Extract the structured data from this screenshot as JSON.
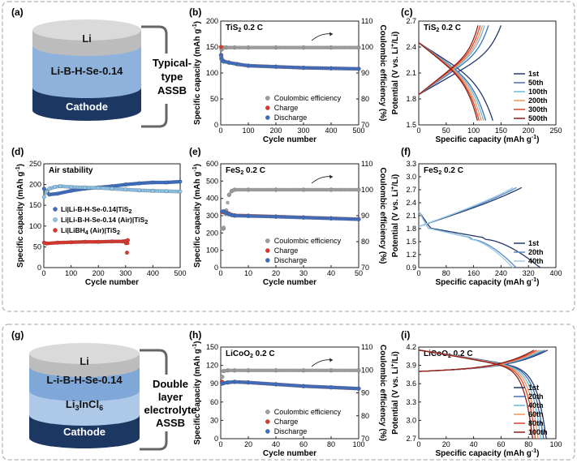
{
  "panel_labels": {
    "a": "(a)",
    "b": "(b)",
    "c": "(c)",
    "d": "(d)",
    "e": "(e)",
    "f": "(f)",
    "g": "(g)",
    "h": "(h)",
    "i": "(i)"
  },
  "panel_a": {
    "layers": [
      "Li",
      "Li-B-H-Se-0.14",
      "Cathode"
    ],
    "caption_lines": [
      "Typical-",
      "type",
      "ASSB"
    ]
  },
  "panel_g": {
    "layers": [
      "Li",
      "L-i-B-H-Se-0.14",
      "Li",
      "3",
      "InCl",
      "6",
      "Cathode"
    ],
    "caption_lines": [
      "Double",
      "layer",
      "electrolyte",
      "ASSB"
    ]
  },
  "colors": {
    "ce": "#9e9e9e",
    "charge": "#e0352b",
    "discharge": "#3b6fc4",
    "cyl_dark": "#1d3763",
    "cyl_light": "#8eb2dc",
    "cyl_mid": "#aec8e8",
    "cyl_top": "#cfcfcf"
  },
  "chart_data": [
    {
      "id": "b",
      "type": "scatter",
      "title": "TiS",
      "title_sub": "2",
      "rate": "0.2 C",
      "xlabel": "Cycle number",
      "ylabel": "Specific capacity (mAh g",
      "ylabel_sup": "-1",
      "ylabel_end": ")",
      "y2label": "Coulombic efficiency (%)",
      "xlim": [
        0,
        500
      ],
      "ylim": [
        0,
        200
      ],
      "y2lim": [
        70,
        110
      ],
      "xticks": [
        "0",
        "100",
        "200",
        "300",
        "400",
        "500"
      ],
      "yticks": [
        "0",
        "50",
        "100",
        "150",
        "200"
      ],
      "y2ticks": [
        "70",
        "80",
        "90",
        "100",
        "110"
      ],
      "legend": [
        "Coulombic efficiency",
        "Charge",
        "Discharge"
      ],
      "series": [
        {
          "name": "Coulombic efficiency",
          "axis": "right",
          "x": [
            1,
            3,
            5,
            10,
            20,
            50,
            100,
            200,
            300,
            400,
            500
          ],
          "y": [
            97,
            99,
            99.5,
            99.8,
            99.8,
            99.8,
            99.8,
            99.8,
            99.8,
            99.8,
            99.8
          ]
        },
        {
          "name": "Charge",
          "axis": "left",
          "x": [
            1,
            2,
            5,
            10,
            30,
            60,
            100,
            200,
            300,
            400,
            500
          ],
          "y": [
            150,
            134,
            125,
            123,
            120,
            117,
            114,
            112,
            110,
            109,
            108
          ]
        },
        {
          "name": "Discharge",
          "axis": "left",
          "x": [
            1,
            2,
            5,
            10,
            30,
            60,
            100,
            200,
            300,
            400,
            500
          ],
          "y": [
            134,
            128,
            124,
            122,
            120,
            117,
            114,
            112,
            110,
            109,
            108
          ]
        }
      ]
    },
    {
      "id": "c",
      "type": "line",
      "title": "TiS",
      "title_sub": "2",
      "rate": "0.2 C",
      "xlabel": "Specific capacity (mAh g",
      "xlabel_sup": "-1",
      "xlabel_end": ")",
      "ylabel": "Potential (V vs. Li",
      "ylabel_sup": "+",
      "ylabel_end": "/Li)",
      "xlim": [
        0,
        250
      ],
      "ylim": [
        1.5,
        2.7
      ],
      "xticks": [
        "0",
        "50",
        "100",
        "150",
        "200",
        "250"
      ],
      "yticks": [
        "1.5",
        "1.8",
        "2.1",
        "2.4",
        "2.7"
      ],
      "series": [
        {
          "name": "1st",
          "color": "#253a6b",
          "capacity": 135,
          "charge_cap": 150
        },
        {
          "name": "50th",
          "color": "#3f6fb3",
          "capacity": 122,
          "charge_cap": 127
        },
        {
          "name": "100th",
          "color": "#6bb9dc",
          "capacity": 118,
          "charge_cap": 120
        },
        {
          "name": "200th",
          "color": "#f0935a",
          "capacity": 114,
          "charge_cap": 116
        },
        {
          "name": "300th",
          "color": "#d9462e",
          "capacity": 110,
          "charge_cap": 112
        },
        {
          "name": "500th",
          "color": "#8c1f1a",
          "capacity": 107,
          "charge_cap": 108
        }
      ]
    },
    {
      "id": "d",
      "type": "scatter",
      "title": "Air stability",
      "xlabel": "Cycle number",
      "ylabel": "Specific capacity (mAh g",
      "ylabel_sup": "-1",
      "ylabel_end": ")",
      "xlim": [
        0,
        500
      ],
      "ylim": [
        0,
        250
      ],
      "xticks": [
        "0",
        "100",
        "200",
        "300",
        "400",
        "500"
      ],
      "yticks": [
        "0",
        "50",
        "100",
        "150",
        "200",
        "250"
      ],
      "legend_items": [
        {
          "text": "Li|Li-B-H-Se-0.14|TiS",
          "sub": "2",
          "color": "#3b6fc4"
        },
        {
          "text": "Li|Li-B-H-Se-0.14 (Air)|TiS",
          "sub": "2",
          "color": "#8ec6ea"
        },
        {
          "text": "Li|LiBH",
          "sub": "4",
          "text2": " (Air)|TiS",
          "sub2": "2",
          "color": "#e0352b"
        }
      ],
      "series": [
        {
          "name": "Li|Li-B-H-Se-0.14|TiS2",
          "x": [
            1,
            20,
            50,
            100,
            150,
            200,
            250,
            300,
            350,
            400,
            450,
            500
          ],
          "y": [
            190,
            176,
            178,
            185,
            190,
            193,
            196,
            200,
            203,
            205,
            205,
            207
          ]
        },
        {
          "name": "Li|Li-B-H-Se-0.14 (Air)|TiS2",
          "x": [
            1,
            10,
            20,
            40,
            60,
            100,
            150,
            200,
            250,
            300,
            350,
            400,
            450,
            500
          ],
          "y": [
            170,
            183,
            190,
            194,
            196,
            194,
            193,
            192,
            190,
            188,
            186,
            185,
            184,
            183
          ]
        },
        {
          "name": "Li|LiBH4 (Air)|TiS2",
          "x": [
            1,
            10,
            50,
            100,
            150,
            200,
            250,
            290,
            300,
            305,
            308
          ],
          "y": [
            60,
            58,
            60,
            61,
            62,
            62,
            63,
            63,
            64,
            36,
            66
          ]
        }
      ]
    },
    {
      "id": "e",
      "type": "scatter",
      "title": "FeS",
      "title_sub": "2",
      "rate": "0.2 C",
      "xlabel": "Cycle number",
      "ylabel": "Specific capacity (mAh g",
      "ylabel_sup": "-1",
      "ylabel_end": ")",
      "y2label": "Coulombic efficiency (%)",
      "xlim": [
        0,
        50
      ],
      "ylim": [
        0,
        600
      ],
      "y2lim": [
        70,
        110
      ],
      "xticks": [
        "0",
        "10",
        "20",
        "30",
        "40",
        "50"
      ],
      "yticks": [
        "0",
        "100",
        "200",
        "300",
        "400",
        "500",
        "600"
      ],
      "y2ticks": [
        "70",
        "80",
        "90",
        "100",
        "110"
      ],
      "legend": [
        "Coulombic efficiency",
        "Charge",
        "Discharge"
      ],
      "series": [
        {
          "name": "Coulombic efficiency",
          "axis": "right",
          "x": [
            1,
            2,
            3,
            4,
            5,
            10,
            20,
            30,
            40,
            50
          ],
          "y": [
            85,
            92,
            98,
            99.5,
            100,
            100,
            100,
            100,
            100,
            100
          ]
        },
        {
          "name": "Charge",
          "axis": "left",
          "x": [
            1,
            2,
            3,
            4,
            5,
            10,
            20,
            30,
            40,
            50
          ],
          "y": [
            320,
            318,
            312,
            305,
            302,
            300,
            295,
            290,
            285,
            280
          ]
        },
        {
          "name": "Discharge",
          "axis": "left",
          "x": [
            1,
            2,
            3,
            4,
            5,
            10,
            20,
            30,
            40,
            50
          ],
          "y": [
            325,
            315,
            308,
            303,
            300,
            298,
            294,
            289,
            284,
            279
          ]
        }
      ]
    },
    {
      "id": "f",
      "type": "line",
      "title": "FeS",
      "title_sub": "2",
      "rate": "0.2 C",
      "xlabel": "Specific capacity (mAh g",
      "xlabel_sup": "-1",
      "xlabel_end": ")",
      "ylabel": "Potential (V vs. Li",
      "ylabel_sup": "+",
      "ylabel_end": "/Li)",
      "xlim": [
        0,
        400
      ],
      "ylim": [
        0.9,
        3.3
      ],
      "xticks": [
        "0",
        "80",
        "160",
        "240",
        "320",
        "400"
      ],
      "yticks": [
        "0.9",
        "1.2",
        "1.5",
        "1.8",
        "2.1",
        "2.4",
        "2.7",
        "3.0",
        "3.3"
      ],
      "series": [
        {
          "name": "1st",
          "color": "#253a6b",
          "capacity": 355,
          "charge_cap": 300
        },
        {
          "name": "20th",
          "color": "#5b89c4",
          "capacity": 285,
          "charge_cap": 285
        },
        {
          "name": "40th",
          "color": "#9ccbe8",
          "capacity": 275,
          "charge_cap": 275
        }
      ]
    },
    {
      "id": "h",
      "type": "scatter",
      "title": "LiCoO",
      "title_sub": "2",
      "rate": "0.2 C",
      "xlabel": "Cycle number",
      "ylabel": "Specific capacity (mAh g",
      "ylabel_sup": "-1",
      "ylabel_end": ")",
      "y2label": "Coulombic efficiency (%)",
      "xlim": [
        0,
        100
      ],
      "ylim": [
        0,
        150
      ],
      "y2lim": [
        70,
        110
      ],
      "xticks": [
        "0",
        "20",
        "40",
        "60",
        "80",
        "100"
      ],
      "yticks": [
        "0",
        "30",
        "60",
        "90",
        "120",
        "150"
      ],
      "y2ticks": [
        "70",
        "80",
        "90",
        "100",
        "110"
      ],
      "legend": [
        "Coulombic efficiency",
        "Charge",
        "Discharge"
      ],
      "series": [
        {
          "name": "Coulombic efficiency",
          "axis": "right",
          "x": [
            1,
            2,
            5,
            10,
            20,
            40,
            60,
            80,
            100
          ],
          "y": [
            97,
            99.5,
            99.8,
            99.8,
            99.8,
            99.8,
            99.8,
            99.8,
            99.8
          ]
        },
        {
          "name": "Charge",
          "axis": "left",
          "x": [
            1,
            2,
            5,
            10,
            20,
            40,
            60,
            80,
            100
          ],
          "y": [
            93,
            91,
            92,
            93,
            92,
            89,
            86,
            84,
            82
          ]
        },
        {
          "name": "Discharge",
          "axis": "left",
          "x": [
            1,
            2,
            5,
            10,
            20,
            40,
            60,
            80,
            100
          ],
          "y": [
            90,
            91,
            92,
            93,
            92,
            89,
            86,
            84,
            82
          ]
        }
      ]
    },
    {
      "id": "i",
      "type": "line",
      "title": "LiCoO",
      "title_sub": "2",
      "rate": "0.2 C",
      "xlabel": "Specific capacity (mAh g",
      "xlabel_sup": "-1",
      "xlabel_end": ")",
      "ylabel": "Potential (V vs. Li",
      "ylabel_sup": "+",
      "ylabel_end": "/Li)",
      "xlim": [
        0,
        100
      ],
      "ylim": [
        2.7,
        4.2
      ],
      "xticks": [
        "0",
        "20",
        "40",
        "60",
        "80",
        "100"
      ],
      "yticks": [
        "2.7",
        "3.0",
        "3.3",
        "3.6",
        "3.9",
        "4.2"
      ],
      "series": [
        {
          "name": "1st",
          "color": "#253a6b",
          "capacity": 93,
          "charge_cap": 94
        },
        {
          "name": "20th",
          "color": "#3f6fb3",
          "capacity": 91,
          "charge_cap": 92
        },
        {
          "name": "40th",
          "color": "#6bb9dc",
          "capacity": 89,
          "charge_cap": 90
        },
        {
          "name": "60th",
          "color": "#f0935a",
          "capacity": 87,
          "charge_cap": 88
        },
        {
          "name": "80th",
          "color": "#d9462e",
          "capacity": 85,
          "charge_cap": 86
        },
        {
          "name": "100th",
          "color": "#8c1f1a",
          "capacity": 83,
          "charge_cap": 84
        }
      ]
    }
  ]
}
